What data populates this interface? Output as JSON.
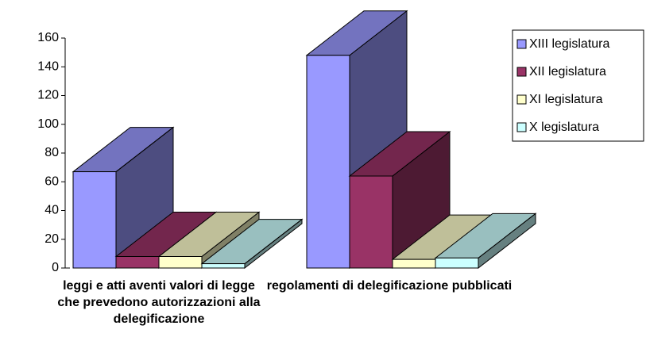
{
  "chart_data": {
    "type": "bar3d",
    "categories": [
      "leggi e atti aventi valori di legge che prevedono autorizzazioni alla delegificazione",
      "regolamenti di delegificazione pubblicati"
    ],
    "series": [
      {
        "name": "XIII legislatura",
        "color": "#9999ff",
        "values": [
          67,
          148
        ]
      },
      {
        "name": "XII legislatura",
        "color": "#993366",
        "values": [
          8,
          64
        ]
      },
      {
        "name": "XI legislatura",
        "color": "#ffffcc",
        "values": [
          8,
          6
        ]
      },
      {
        "name": "X legislatura",
        "color": "#ccffff",
        "values": [
          3,
          7
        ]
      }
    ],
    "ylim": [
      0,
      160
    ],
    "yticks": [
      0,
      20,
      40,
      60,
      80,
      100,
      120,
      140,
      160
    ],
    "legend": "right"
  }
}
